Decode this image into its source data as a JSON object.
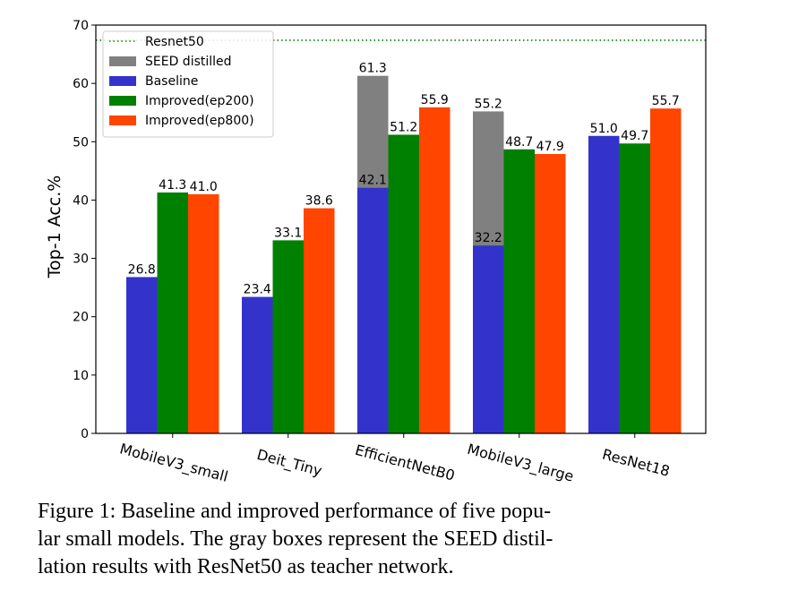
{
  "chart_data": {
    "type": "bar",
    "title": "",
    "xlabel": "",
    "ylabel": "Top-1 Acc.%",
    "ylim": [
      0,
      70
    ],
    "yticks": [
      0,
      10,
      20,
      30,
      40,
      50,
      60,
      70
    ],
    "grid": false,
    "legend_position": "top-left",
    "categories": [
      "MobileV3_small",
      "Deit_Tiny",
      "EfficientNetB0",
      "MobileV3_large",
      "ResNet18"
    ],
    "series": [
      {
        "name": "SEED distilled",
        "color": "#808080",
        "values": [
          null,
          null,
          61.3,
          55.2,
          null
        ],
        "labels": [
          "",
          "",
          "61.3",
          "55.2",
          ""
        ]
      },
      {
        "name": "Baseline",
        "color": "#3333cc",
        "values": [
          26.8,
          23.4,
          42.1,
          32.2,
          51.0
        ],
        "labels": [
          "26.8",
          "23.4",
          "42.1",
          "32.2",
          "51.0"
        ]
      },
      {
        "name": "Improved(ep200)",
        "color": "#008000",
        "values": [
          41.3,
          33.1,
          51.2,
          48.7,
          49.7
        ],
        "labels": [
          "41.3",
          "33.1",
          "51.2",
          "48.7",
          "49.7"
        ]
      },
      {
        "name": "Improved(ep800)",
        "color": "#ff4500",
        "values": [
          41.0,
          38.6,
          55.9,
          47.9,
          55.7
        ],
        "labels": [
          "41.0",
          "38.6",
          "55.9",
          "47.9",
          "55.7"
        ]
      }
    ],
    "reference_line": {
      "name": "Resnet50",
      "value": 67.4,
      "color": "#008000",
      "style": "dotted"
    }
  },
  "caption": "Figure 1: Baseline and improved performance of five popu-\nlar small models. The gray boxes represent the SEED distil-\nlation results with ResNet50 as teacher network."
}
